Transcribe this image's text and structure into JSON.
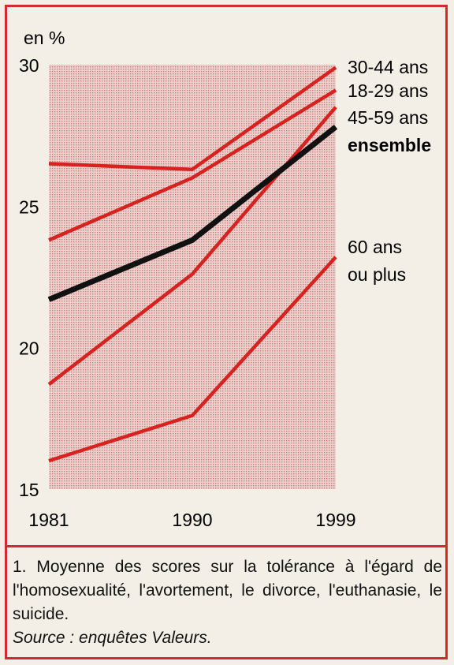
{
  "chart_data": {
    "type": "line",
    "ylabel": "en %",
    "x": [
      "1981",
      "1990",
      "1999"
    ],
    "ylim": [
      15,
      30
    ],
    "yticks": [
      30,
      25,
      20,
      15
    ],
    "grid": false,
    "background_pattern": "red hatched/dotted",
    "series": [
      {
        "name": "30-44 ans",
        "values": [
          26.5,
          26.3,
          29.9
        ],
        "color": "#d8221f"
      },
      {
        "name": "18-29 ans",
        "values": [
          23.8,
          26.0,
          29.1
        ],
        "color": "#d8221f"
      },
      {
        "name": "45-59 ans",
        "values": [
          18.7,
          22.6,
          28.5
        ],
        "color": "#d8221f"
      },
      {
        "name": "ensemble",
        "values": [
          21.7,
          23.8,
          27.8
        ],
        "color": "#111111",
        "bold": true
      },
      {
        "name": "60 ans ou plus",
        "values": [
          16.0,
          17.6,
          23.2
        ],
        "color": "#d8221f"
      }
    ],
    "legend": [
      {
        "text": "30-44 ans",
        "bold": false
      },
      {
        "text": "18-29 ans",
        "bold": false
      },
      {
        "text": "45-59 ans",
        "bold": false
      },
      {
        "text": "ensemble",
        "bold": true
      },
      {
        "text": "60 ans",
        "bold": false
      },
      {
        "text": "ou plus",
        "bold": false
      }
    ]
  },
  "caption": {
    "note": "1. Moyenne des scores sur la tolérance à l'égard de l'homosexualité, l'avortement, le divorce, l'euthanasie, le suicide.",
    "source": "Source : enquêtes Valeurs."
  },
  "colors": {
    "accent": "#d62a28",
    "plot_bg": "#e6c3c0",
    "background": "#f3efe6"
  }
}
